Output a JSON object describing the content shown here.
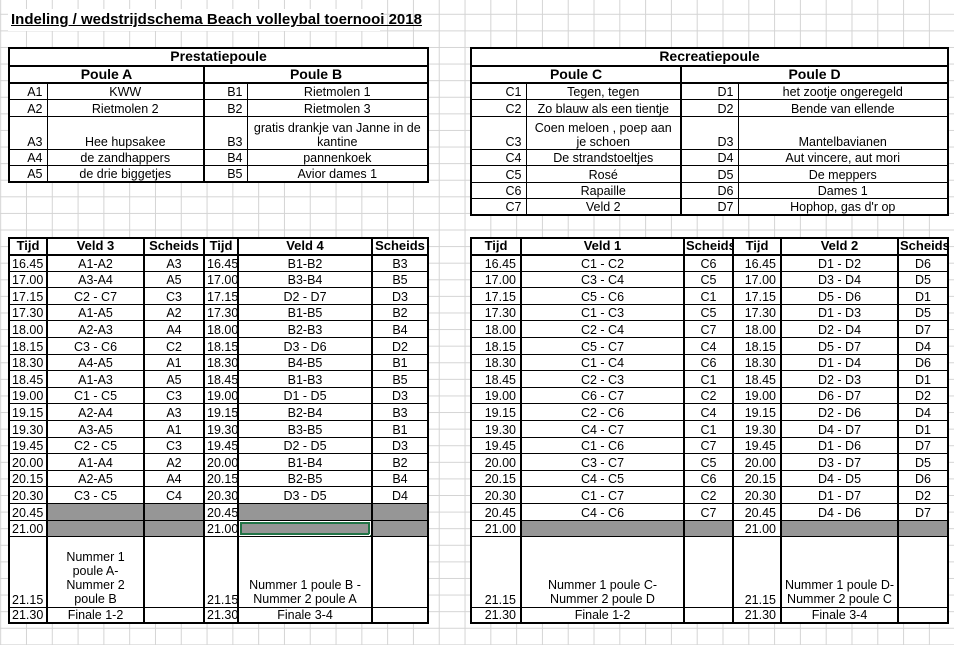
{
  "title": "Indeling / wedstrijdschema Beach volleybal toernooi 2018",
  "colors": {
    "selection_green": "#217346",
    "cell_gray": "#969696",
    "gridline": "#d4d4d4"
  },
  "poules": {
    "prestatie": {
      "group_label": "Prestatiepoule",
      "left_label": "Poule A",
      "right_label": "Poule B",
      "rows": [
        {
          "c": [
            "A1",
            "KWW",
            "B1",
            "Rietmolen 1"
          ]
        },
        {
          "c": [
            "A2",
            "Rietmolen 2",
            "B2",
            "Rietmolen 3"
          ]
        },
        {
          "c": [
            "A3",
            "Hee hupsakee",
            "B3",
            "gratis drankje van Janne in de kantine"
          ],
          "tall": true
        },
        {
          "c": [
            "A4",
            "de zandhappers",
            "B4",
            "pannenkoek"
          ]
        },
        {
          "c": [
            "A5",
            "de drie biggetjes",
            "B5",
            "Avior dames 1"
          ]
        }
      ]
    },
    "recreatie": {
      "group_label": "Recreatiepoule",
      "left_label": "Poule C",
      "right_label": "Poule D",
      "rows": [
        {
          "c": [
            "C1",
            "Tegen, tegen",
            "D1",
            "het zootje ongeregeld"
          ]
        },
        {
          "c": [
            "C2",
            "Zo blauw als een tientje",
            "D2",
            "Bende van ellende"
          ]
        },
        {
          "c": [
            "C3",
            "Coen meloen , poep aan je schoen",
            "D3",
            "Mantelbavianen"
          ],
          "tall": true
        },
        {
          "c": [
            "C4",
            "De strandstoeltjes",
            "D4",
            "Aut vincere, aut mori"
          ]
        },
        {
          "c": [
            "C5",
            "Rosé",
            "D5",
            "De meppers"
          ]
        },
        {
          "c": [
            "C6",
            "Rapaille",
            "D6",
            "Dames 1"
          ]
        },
        {
          "c": [
            "C7",
            "Veld 2",
            "D7",
            "Hophop, gas d'r op"
          ]
        }
      ]
    }
  },
  "schedules": {
    "left": {
      "headers": [
        "Tijd",
        "Veld 3",
        "Scheids",
        "Tijd",
        "Veld 4",
        "Scheids"
      ],
      "rows": [
        {
          "c": [
            "16.45",
            "A1-A2",
            "A3",
            "16.45",
            "B1-B2",
            "B3"
          ]
        },
        {
          "c": [
            "17.00",
            "A3-A4",
            "A5",
            "17.00",
            "B3-B4",
            "B5"
          ]
        },
        {
          "c": [
            "17.15",
            "C2 - C7",
            "C3",
            "17.15",
            "D2 - D7",
            "D3"
          ]
        },
        {
          "c": [
            "17.30",
            "A1-A5",
            "A2",
            "17.30",
            "B1-B5",
            "B2"
          ]
        },
        {
          "c": [
            "18.00",
            "A2-A3",
            "A4",
            "18.00",
            "B2-B3",
            "B4"
          ]
        },
        {
          "c": [
            "18.15",
            "C3 - C6",
            "C2",
            "18.15",
            "D3 - D6",
            "D2"
          ]
        },
        {
          "c": [
            "18.30",
            "A4-A5",
            "A1",
            "18.30",
            "B4-B5",
            "B1"
          ]
        },
        {
          "c": [
            "18.45",
            "A1-A3",
            "A5",
            "18.45",
            "B1-B3",
            "B5"
          ]
        },
        {
          "c": [
            "19.00",
            "C1 - C5",
            "C3",
            "19.00",
            "D1 - D5",
            "D3"
          ]
        },
        {
          "c": [
            "19.15",
            "A2-A4",
            "A3",
            "19.15",
            "B2-B4",
            "B3"
          ]
        },
        {
          "c": [
            "19.30",
            "A3-A5",
            "A1",
            "19.30",
            "B3-B5",
            "B1"
          ]
        },
        {
          "c": [
            "19.45",
            "C2 - C5",
            "C3",
            "19.45",
            "D2 - D5",
            "D3"
          ]
        },
        {
          "c": [
            "20.00",
            "A1-A4",
            "A2",
            "20.00",
            "B1-B4",
            "B2"
          ]
        },
        {
          "c": [
            "20.15",
            "A2-A5",
            "A4",
            "20.15",
            "B2-B5",
            "B4"
          ]
        },
        {
          "c": [
            "20.30",
            "C3 - C5",
            "C4",
            "20.30",
            "D3 - D5",
            "D4"
          ]
        },
        {
          "c": [
            "20.45",
            "",
            "",
            "20.45",
            "",
            ""
          ],
          "gray": [
            1,
            2,
            4,
            5
          ]
        },
        {
          "c": [
            "21.00",
            "",
            "",
            "21.00",
            "",
            ""
          ],
          "gray": [
            1,
            2,
            4,
            5
          ],
          "sel": 4
        },
        {
          "c": [
            "21.15",
            "Nummer 1 poule A- Nummer 2 poule B",
            "",
            "21.15",
            "Nummer 1 poule B - Nummer 2 poule A",
            ""
          ],
          "tall": true
        },
        {
          "c": [
            "21.30",
            "Finale 1-2",
            "",
            "21.30",
            "Finale 3-4",
            ""
          ],
          "last": true
        }
      ]
    },
    "right": {
      "headers": [
        "Tijd",
        "Veld 1",
        "Scheids",
        "Tijd",
        "Veld 2",
        "Scheids"
      ],
      "rows": [
        {
          "c": [
            "16.45",
            "C1 - C2",
            "C6",
            "16.45",
            "D1 - D2",
            "D6"
          ]
        },
        {
          "c": [
            "17.00",
            "C3 - C4",
            "C5",
            "17.00",
            "D3 - D4",
            "D5"
          ]
        },
        {
          "c": [
            "17.15",
            "C5 - C6",
            "C1",
            "17.15",
            "D5 - D6",
            "D1"
          ]
        },
        {
          "c": [
            "17.30",
            "C1 - C3",
            "C5",
            "17.30",
            "D1 - D3",
            "D5"
          ]
        },
        {
          "c": [
            "18.00",
            "C2 - C4",
            "C7",
            "18.00",
            "D2 - D4",
            "D7"
          ]
        },
        {
          "c": [
            "18.15",
            "C5 - C7",
            "C4",
            "18.15",
            "D5 - D7",
            "D4"
          ]
        },
        {
          "c": [
            "18.30",
            "C1 - C4",
            "C6",
            "18.30",
            "D1 - D4",
            "D6"
          ]
        },
        {
          "c": [
            "18.45",
            "C2 - C3",
            "C1",
            "18.45",
            "D2 - D3",
            "D1"
          ]
        },
        {
          "c": [
            "19.00",
            "C6 - C7",
            "C2",
            "19.00",
            "D6 - D7",
            "D2"
          ]
        },
        {
          "c": [
            "19.15",
            "C2 - C6",
            "C4",
            "19.15",
            "D2 - D6",
            "D4"
          ]
        },
        {
          "c": [
            "19.30",
            "C4 - C7",
            "C1",
            "19.30",
            "D4 - D7",
            "D1"
          ]
        },
        {
          "c": [
            "19.45",
            "C1 - C6",
            "C7",
            "19.45",
            "D1 - D6",
            "D7"
          ]
        },
        {
          "c": [
            "20.00",
            "C3 - C7",
            "C5",
            "20.00",
            "D3 - D7",
            "D5"
          ]
        },
        {
          "c": [
            "20.15",
            "C4 - C5",
            "C6",
            "20.15",
            "D4 - D5",
            "D6"
          ]
        },
        {
          "c": [
            "20.30",
            "C1 - C7",
            "C2",
            "20.30",
            "D1 - D7",
            "D2"
          ]
        },
        {
          "c": [
            "20.45",
            "C4 - C6",
            "C7",
            "20.45",
            "D4 - D6",
            "D7"
          ]
        },
        {
          "c": [
            "21.00",
            "",
            "",
            "21.00",
            "",
            ""
          ],
          "gray": [
            1,
            2,
            4,
            5
          ]
        },
        {
          "c": [
            "21.15",
            "Nummer 1 poule C- Nummer 2 poule D",
            "",
            "21.15",
            "Nummer 1 poule D- Nummer 2 poule C",
            ""
          ],
          "tall": true
        },
        {
          "c": [
            "21.30",
            "Finale 1-2",
            "",
            "21.30",
            "Finale 3-4",
            ""
          ],
          "last": true
        }
      ]
    }
  }
}
